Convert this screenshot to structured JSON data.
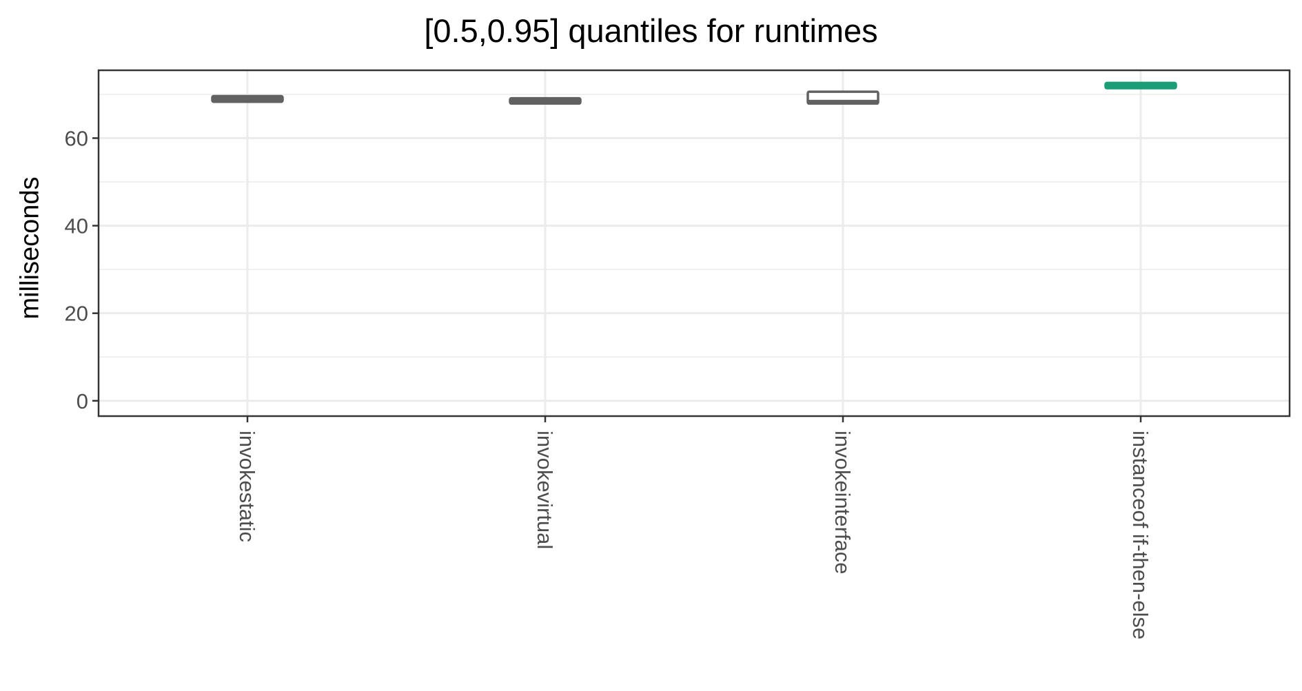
{
  "chart_data": {
    "type": "boxplot",
    "title": "[0.5,0.95] quantiles for runtimes",
    "xlabel": "",
    "ylabel": "milliseconds",
    "ylim": [
      -3.5,
      75.5
    ],
    "yticks": [
      0,
      20,
      40,
      60
    ],
    "grid": true,
    "categories": [
      "invokestatic",
      "invokevirtual",
      "invokeinterface",
      "instanceof if-then-else"
    ],
    "boxes": [
      {
        "category": "invokestatic",
        "low": 68.3,
        "high": 69.6,
        "median": 68.9,
        "color": "#616161"
      },
      {
        "category": "invokevirtual",
        "low": 67.9,
        "high": 69.1,
        "median": 68.4,
        "color": "#616161"
      },
      {
        "category": "invokeinterface",
        "low": 67.9,
        "high": 70.6,
        "median": 68.2,
        "color": "#616161"
      },
      {
        "category": "instanceof if-then-else",
        "low": 71.4,
        "high": 72.6,
        "median": 72.0,
        "color": "#1b9e77"
      }
    ]
  }
}
